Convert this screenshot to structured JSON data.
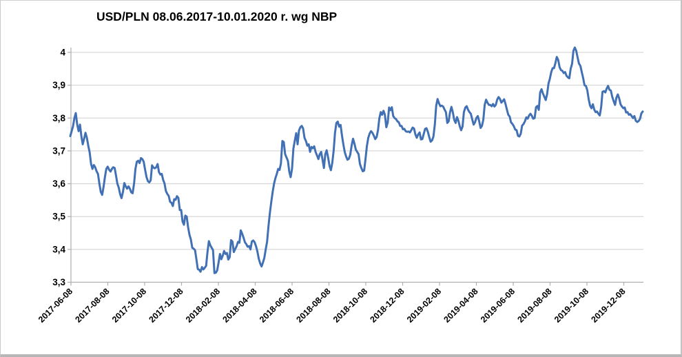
{
  "title": "USD/PLN 08.06.2017-10.01.2020 r. wg NBP",
  "chart_data": {
    "type": "line",
    "title": "USD/PLN 08.06.2017-10.01.2020 r. wg NBP",
    "xlabel": "",
    "ylabel": "",
    "ylim": [
      3.3,
      4.05
    ],
    "grid": true,
    "legend": false,
    "line_color": "#4170b4",
    "grid_color": "#cfcfcf",
    "axis_color": "#aeaeae",
    "x_tick_labels": [
      "2017-06-08",
      "2017-08-08",
      "2017-10-08",
      "2017-12-08",
      "2018-02-08",
      "2018-04-08",
      "2018-06-08",
      "2018-08-08",
      "2018-10-08",
      "2018-12-08",
      "2019-02-08",
      "2019-04-08",
      "2019-06-08",
      "2019-08-08",
      "2019-10-08",
      "2019-12-08"
    ],
    "y_ticks": [
      4,
      3.9,
      3.8,
      3.7,
      3.6,
      3.5,
      3.4,
      3.3
    ],
    "y_tick_labels": [
      "4",
      "3,9",
      "3,8",
      "3,7",
      "3,6",
      "3,5",
      "3,4",
      "3,3"
    ],
    "series": [
      {
        "name": "USD/PLN",
        "start_date": "2017-06-08",
        "end_date": "2020-01-10",
        "sampling": "approx. every 2.3 days, values read from chart",
        "values": [
          3.745,
          3.76,
          3.775,
          3.8,
          3.815,
          3.78,
          3.76,
          3.78,
          3.745,
          3.72,
          3.737,
          3.755,
          3.74,
          3.715,
          3.695,
          3.66,
          3.645,
          3.657,
          3.65,
          3.638,
          3.63,
          3.6,
          3.575,
          3.566,
          3.59,
          3.62,
          3.645,
          3.652,
          3.643,
          3.637,
          3.645,
          3.65,
          3.648,
          3.625,
          3.6,
          3.588,
          3.568,
          3.556,
          3.575,
          3.602,
          3.592,
          3.585,
          3.592,
          3.585,
          3.574,
          3.571,
          3.6,
          3.645,
          3.667,
          3.67,
          3.663,
          3.678,
          3.675,
          3.667,
          3.642,
          3.62,
          3.608,
          3.604,
          3.61,
          3.656,
          3.649,
          3.647,
          3.65,
          3.66,
          3.635,
          3.628,
          3.63,
          3.612,
          3.601,
          3.578,
          3.569,
          3.563,
          3.545,
          3.542,
          3.532,
          3.553,
          3.551,
          3.562,
          3.557,
          3.52,
          3.52,
          3.485,
          3.475,
          3.503,
          3.5,
          3.468,
          3.445,
          3.43,
          3.405,
          3.402,
          3.398,
          3.37,
          3.34,
          3.338,
          3.332,
          3.346,
          3.339,
          3.344,
          3.35,
          3.392,
          3.425,
          3.413,
          3.405,
          3.398,
          3.328,
          3.329,
          3.336,
          3.36,
          3.386,
          3.37,
          3.381,
          3.395,
          3.386,
          3.389,
          3.369,
          3.376,
          3.428,
          3.424,
          3.392,
          3.401,
          3.41,
          3.423,
          3.42,
          3.458,
          3.448,
          3.436,
          3.422,
          3.416,
          3.408,
          3.41,
          3.4,
          3.424,
          3.427,
          3.422,
          3.41,
          3.394,
          3.372,
          3.357,
          3.348,
          3.36,
          3.374,
          3.4,
          3.423,
          3.47,
          3.51,
          3.545,
          3.575,
          3.6,
          3.617,
          3.63,
          3.645,
          3.642,
          3.662,
          3.73,
          3.727,
          3.69,
          3.68,
          3.67,
          3.637,
          3.62,
          3.645,
          3.707,
          3.732,
          3.754,
          3.72,
          3.762,
          3.772,
          3.776,
          3.768,
          3.74,
          3.73,
          3.716,
          3.72,
          3.697,
          3.712,
          3.708,
          3.714,
          3.697,
          3.686,
          3.675,
          3.69,
          3.697,
          3.673,
          3.648,
          3.69,
          3.702,
          3.68,
          3.655,
          3.641,
          3.663,
          3.7,
          3.755,
          3.785,
          3.789,
          3.774,
          3.779,
          3.747,
          3.72,
          3.697,
          3.683,
          3.673,
          3.676,
          3.688,
          3.717,
          3.737,
          3.722,
          3.704,
          3.697,
          3.69,
          3.66,
          3.648,
          3.638,
          3.64,
          3.676,
          3.715,
          3.74,
          3.753,
          3.76,
          3.755,
          3.746,
          3.736,
          3.742,
          3.763,
          3.8,
          3.818,
          3.81,
          3.822,
          3.81,
          3.772,
          3.786,
          3.832,
          3.824,
          3.833,
          3.806,
          3.8,
          3.797,
          3.79,
          3.787,
          3.776,
          3.776,
          3.766,
          3.767,
          3.76,
          3.758,
          3.759,
          3.756,
          3.763,
          3.771,
          3.768,
          3.75,
          3.74,
          3.75,
          3.756,
          3.735,
          3.736,
          3.752,
          3.767,
          3.769,
          3.758,
          3.742,
          3.728,
          3.732,
          3.744,
          3.78,
          3.838,
          3.858,
          3.845,
          3.836,
          3.838,
          3.835,
          3.826,
          3.818,
          3.785,
          3.79,
          3.818,
          3.834,
          3.818,
          3.794,
          3.785,
          3.803,
          3.792,
          3.775,
          3.763,
          3.774,
          3.818,
          3.832,
          3.836,
          3.825,
          3.818,
          3.813,
          3.796,
          3.78,
          3.787,
          3.8,
          3.806,
          3.79,
          3.77,
          3.776,
          3.795,
          3.84,
          3.856,
          3.847,
          3.84,
          3.84,
          3.836,
          3.843,
          3.835,
          3.84,
          3.856,
          3.864,
          3.858,
          3.847,
          3.852,
          3.857,
          3.843,
          3.826,
          3.81,
          3.805,
          3.787,
          3.782,
          3.775,
          3.765,
          3.763,
          3.746,
          3.744,
          3.752,
          3.777,
          3.782,
          3.79,
          3.802,
          3.798,
          3.808,
          3.813,
          3.807,
          3.798,
          3.8,
          3.833,
          3.837,
          3.825,
          3.878,
          3.888,
          3.875,
          3.865,
          3.855,
          3.873,
          3.905,
          3.92,
          3.94,
          3.952,
          3.952,
          3.967,
          3.986,
          3.977,
          3.955,
          3.946,
          3.944,
          3.937,
          3.94,
          3.929,
          3.924,
          3.921,
          3.95,
          3.965,
          4.005,
          4.015,
          4.005,
          3.985,
          3.966,
          3.959,
          3.94,
          3.922,
          3.9,
          3.898,
          3.885,
          3.858,
          3.838,
          3.83,
          3.842,
          3.826,
          3.818,
          3.82,
          3.813,
          3.808,
          3.832,
          3.88,
          3.882,
          3.878,
          3.89,
          3.898,
          3.886,
          3.884,
          3.865,
          3.852,
          3.84,
          3.862,
          3.872,
          3.86,
          3.842,
          3.835,
          3.83,
          3.832,
          3.817,
          3.818,
          3.81,
          3.812,
          3.806,
          3.8,
          3.806,
          3.792,
          3.788,
          3.791,
          3.797,
          3.814,
          3.82
        ]
      }
    ]
  }
}
